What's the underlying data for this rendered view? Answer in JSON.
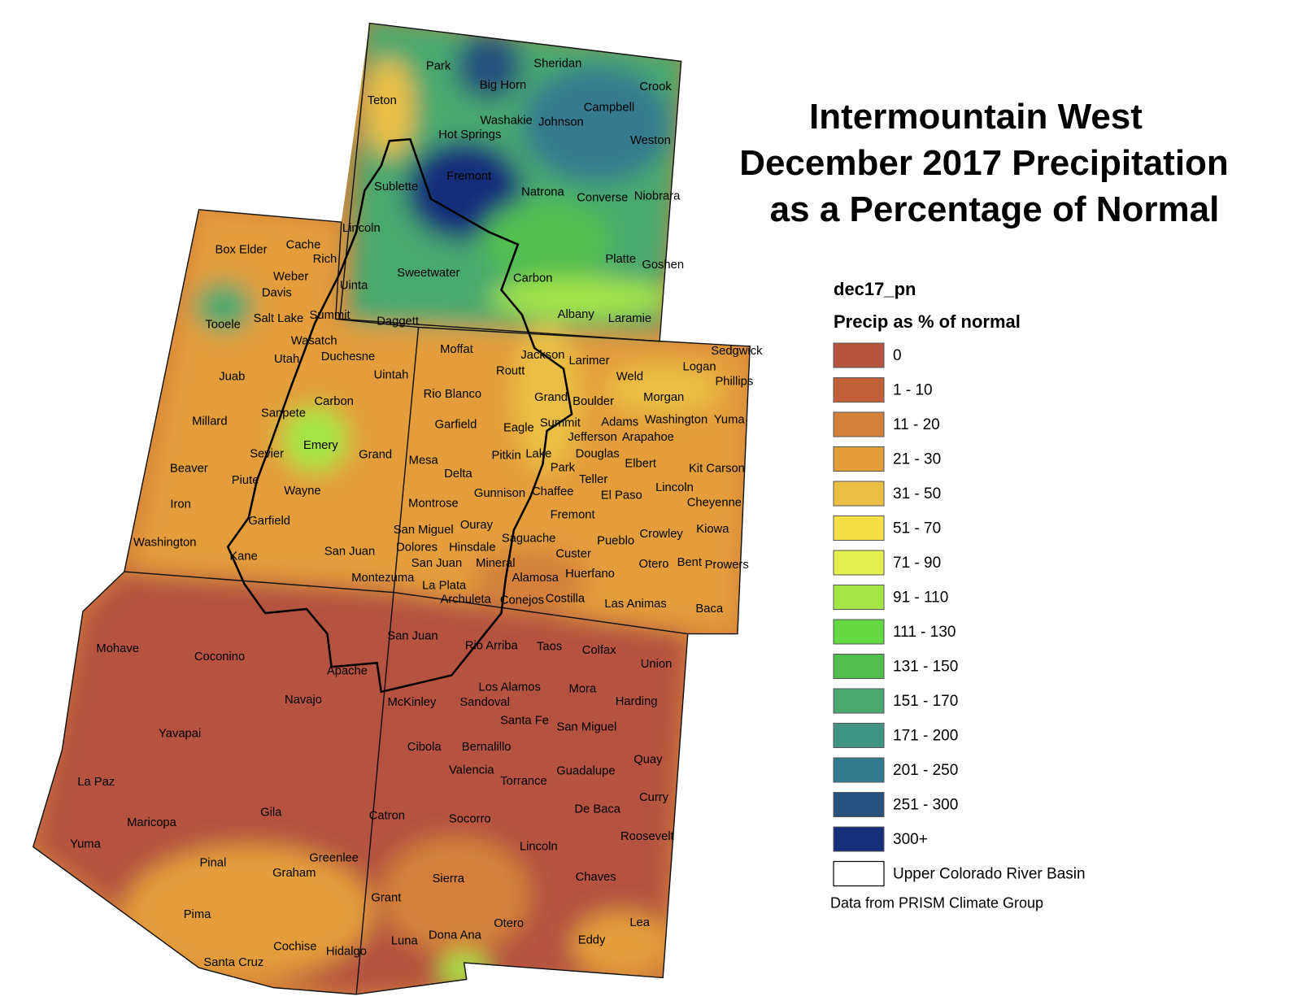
{
  "title": [
    "Intermountain West",
    "December 2017 Precipitation",
    "as a Percentage of Normal"
  ],
  "legend": {
    "layer": "dec17_pn",
    "heading": "Precip as % of normal",
    "items": [
      {
        "label": "0",
        "color": "#b5533f"
      },
      {
        "label": "1 - 10",
        "color": "#c2603a"
      },
      {
        "label": "11 - 20",
        "color": "#d4823a"
      },
      {
        "label": "21 - 30",
        "color": "#e39e3a"
      },
      {
        "label": "31 - 50",
        "color": "#ebbf45"
      },
      {
        "label": "51 - 70",
        "color": "#f5e04a"
      },
      {
        "label": "71 - 90",
        "color": "#e4f04f"
      },
      {
        "label": "91 - 110",
        "color": "#a3e546"
      },
      {
        "label": "111 - 130",
        "color": "#63d843"
      },
      {
        "label": "131 - 150",
        "color": "#52bd4f"
      },
      {
        "label": "151 - 170",
        "color": "#4aa86e"
      },
      {
        "label": "171 - 200",
        "color": "#3f9482"
      },
      {
        "label": "201 - 250",
        "color": "#347a8e"
      },
      {
        "label": "251 - 300",
        "color": "#27517d"
      },
      {
        "label": "300+",
        "color": "#182f7a"
      }
    ],
    "basin": "Upper Colorado River Basin",
    "source": "Data from PRISM Climate Group"
  },
  "counties": [
    "Park",
    "Sheridan",
    "Big Horn",
    "Crook",
    "Teton",
    "Campbell",
    "Washakie",
    "Johnson",
    "Hot Springs",
    "Weston",
    "Fremont",
    "Sublette",
    "Natrona",
    "Converse",
    "Niobrara",
    "Lincoln",
    "Box Elder",
    "Cache",
    "Rich",
    "Platte",
    "Goshen",
    "Weber",
    "Sweetwater",
    "Carbon",
    "Davis",
    "Uinta",
    "Tooele",
    "Salt Lake",
    "Summit",
    "Daggett",
    "Albany",
    "Laramie",
    "Wasatch",
    "Moffat",
    "Sedgwick",
    "Utah",
    "Duchesne",
    "Jackson",
    "Larimer",
    "Logan",
    "Routt",
    "Juab",
    "Uintah",
    "Weld",
    "Phillips",
    "Rio Blanco",
    "Grand",
    "Morgan",
    "Boulder",
    "Carbon",
    "Sanpete",
    "Millard",
    "Garfield",
    "Summit",
    "Eagle",
    "Adams",
    "Washington",
    "Yuma",
    "Jefferson",
    "Arapahoe",
    "Emery",
    "Sevier",
    "Grand",
    "Mesa",
    "Pitkin",
    "Lake",
    "Douglas",
    "Elbert",
    "Kit Carson",
    "Beaver",
    "Park",
    "Delta",
    "Teller",
    "Piute",
    "Wayne",
    "Chaffee",
    "Gunnison",
    "El Paso",
    "Lincoln",
    "Cheyenne",
    "Iron",
    "Montrose",
    "Fremont",
    "Garfield",
    "Ouray",
    "Kiowa",
    "Crowley",
    "San Miguel",
    "Saguache",
    "Washington",
    "Pueblo",
    "Dolores",
    "Hinsdale",
    "San Juan",
    "Custer",
    "Kane",
    "Otero",
    "Bent",
    "Prowers",
    "San Juan",
    "Mineral",
    "Alamosa",
    "Huerfano",
    "Montezuma",
    "La Plata",
    "Archuleta",
    "Conejos",
    "Costilla",
    "Las Animas",
    "Baca",
    "San Juan",
    "Mohave",
    "Rio Arriba",
    "Taos",
    "Colfax",
    "Coconino",
    "Union",
    "Apache",
    "Los Alamos",
    "Mora",
    "Navajo",
    "McKinley",
    "Sandoval",
    "Harding",
    "Santa Fe",
    "San Miguel",
    "Yavapai",
    "Cibola",
    "Bernalillo",
    "Quay",
    "Valencia",
    "Guadalupe",
    "Torrance",
    "La Paz",
    "Curry",
    "De Baca",
    "Gila",
    "Catron",
    "Socorro",
    "Maricopa",
    "Roosevelt",
    "Lincoln",
    "Yuma",
    "Greenlee",
    "Pinal",
    "Graham",
    "Sierra",
    "Chaves",
    "Grant",
    "Pima",
    "Otero",
    "Lea",
    "Dona Ana",
    "Luna",
    "Eddy",
    "Cochise",
    "Hidalgo",
    "Santa Cruz"
  ]
}
